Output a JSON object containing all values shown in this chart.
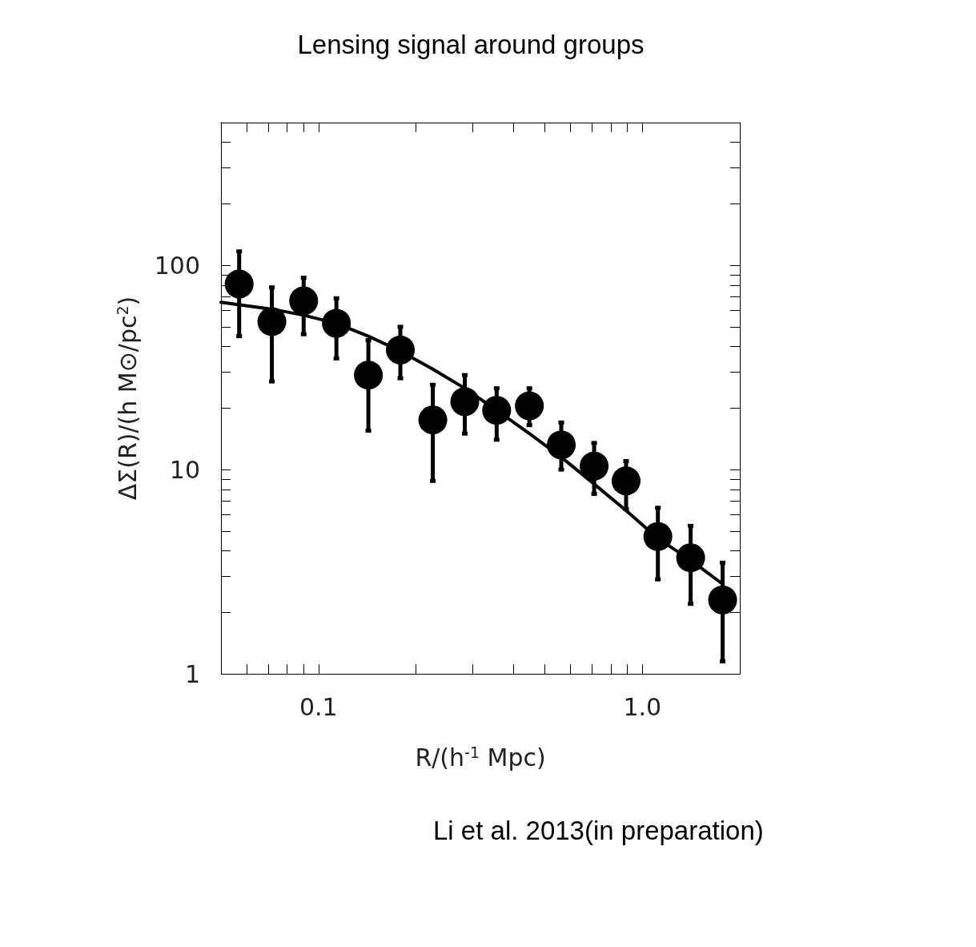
{
  "chart_data": {
    "type": "scatter",
    "title": "Lensing signal around groups",
    "xlabel": "R/(h$^{-1}$ Mpc)",
    "ylabel": "ΔΣ(R)/(h M⊙/pc$^{2}$)",
    "annotations": [
      "Li et al. 2013(in preparation)"
    ],
    "log": "xy",
    "grid": false,
    "xlim": [
      0.05,
      2
    ],
    "ylim": [
      1,
      500
    ],
    "xticks": [
      {
        "value": 0.06,
        "label": null
      },
      {
        "value": 0.07,
        "label": null
      },
      {
        "value": 0.08,
        "label": null
      },
      {
        "value": 0.09,
        "label": null
      },
      0.1,
      {
        "value": 0.2,
        "label": null
      },
      {
        "value": 0.3,
        "label": null
      },
      {
        "value": 0.4,
        "label": null
      },
      {
        "value": 0.5,
        "label": null
      },
      {
        "value": 0.6,
        "label": null
      },
      {
        "value": 0.7,
        "label": null
      },
      {
        "value": 0.8,
        "label": null
      },
      {
        "value": 0.9,
        "label": null
      },
      {
        "value": 1,
        "label": "1.0"
      },
      {
        "value": 2,
        "label": null
      }
    ],
    "yticks": [
      1,
      {
        "value": 2,
        "label": null
      },
      {
        "value": 3,
        "label": null
      },
      {
        "value": 4,
        "label": null
      },
      {
        "value": 5,
        "label": null
      },
      {
        "value": 6,
        "label": null
      },
      {
        "value": 7,
        "label": null
      },
      {
        "value": 8,
        "label": null
      },
      {
        "value": 9,
        "label": null
      },
      10,
      {
        "value": 20,
        "label": null
      },
      {
        "value": 30,
        "label": null
      },
      {
        "value": 40,
        "label": null
      },
      {
        "value": 50,
        "label": null
      },
      {
        "value": 60,
        "label": null
      },
      {
        "value": 70,
        "label": null
      },
      {
        "value": 80,
        "label": null
      },
      {
        "value": 90,
        "label": null
      },
      100,
      {
        "value": 200,
        "label": null
      },
      {
        "value": 300,
        "label": null
      },
      {
        "value": 400,
        "label": null
      }
    ],
    "series": [
      {
        "color": "#000000",
        "marker": "circle",
        "x": [
          0.0569,
          0.0718,
          0.09,
          0.1136,
          0.1426,
          0.179,
          0.2255,
          0.283,
          0.355,
          0.448,
          0.562,
          0.71,
          0.891,
          1.117,
          1.41,
          1.77
        ],
        "values": [
          81,
          53,
          67,
          52,
          29,
          38.5,
          17.5,
          21.5,
          19.5,
          20.5,
          13.2,
          10.4,
          8.8,
          4.7,
          3.7,
          2.3
        ],
        "errors": [
          [
            45,
            117
          ],
          [
            27,
            78
          ],
          [
            46,
            87
          ],
          [
            35,
            69
          ],
          [
            15.5,
            43
          ],
          [
            28,
            50
          ],
          [
            8.8,
            26
          ],
          [
            15,
            29
          ],
          [
            14,
            25
          ],
          [
            16.5,
            25
          ],
          [
            10,
            17
          ],
          [
            7.6,
            13.5
          ],
          [
            6.4,
            11
          ],
          [
            2.9,
            6.5
          ],
          [
            2.2,
            5.3
          ],
          [
            1.15,
            3.5
          ]
        ]
      },
      {
        "type": "line",
        "color": "#000000",
        "marker": "none",
        "line_style": "solid",
        "x": [
          0.05,
          0.0718,
          0.09,
          0.1136,
          0.1426,
          0.179,
          0.2255,
          0.283,
          0.355,
          0.448,
          0.562,
          0.71,
          0.891,
          1.117,
          1.41,
          1.77
        ],
        "values": [
          66,
          61,
          57,
          52,
          45,
          38,
          31,
          25,
          19.5,
          15,
          11.5,
          8.5,
          6.3,
          4.6,
          3.6,
          2.75
        ]
      }
    ]
  }
}
